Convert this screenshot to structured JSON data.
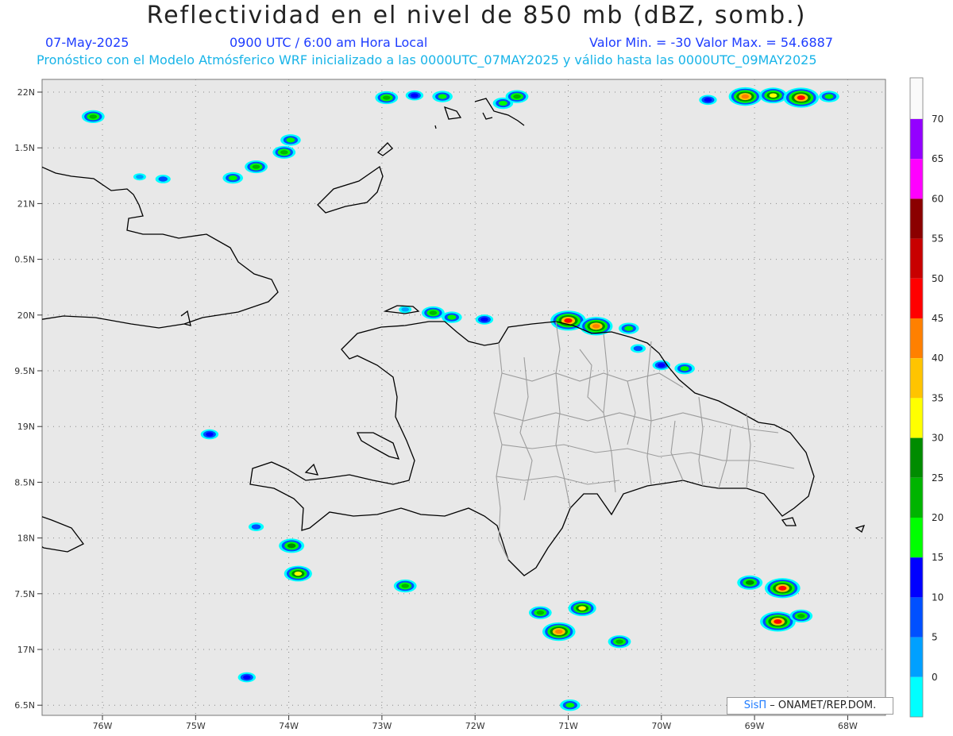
{
  "title": "Reflectividad en el nivel de 850 mb (dBZ, somb.)",
  "date": "07-May-2025",
  "time": "0900 UTC / 6:00 am Hora Local",
  "minmax": "Valor Min. = -30  Valor Max. = 54.6887",
  "model_info": "Pronóstico con el Modelo Atmósferico WRF inicializado a las 0000UTC_07MAY2025 y válido hasta las  0000UTC_09MAY2025",
  "credit_logo": "SisΠ",
  "credit_text": "– ONAMET/REP.DOM.",
  "colors": {
    "title": "#222222",
    "date": "#1e3cff",
    "info": "#18b4e8",
    "map_bg": "#e8e8e8",
    "coast": "#000000",
    "provinces": "#9c9c9c"
  },
  "map": {
    "lat_labels": [
      "22N",
      "1.5N",
      "21N",
      "0.5N",
      "20N",
      "9.5N",
      "19N",
      "8.5N",
      "18N",
      "7.5N",
      "17N",
      "6.5N"
    ],
    "lon_labels": [
      "76W",
      "75W",
      "74W",
      "73W",
      "72W",
      "71W",
      "70W",
      "69W",
      "68W"
    ]
  },
  "colorbar": {
    "labels": [
      "70",
      "65",
      "60",
      "55",
      "50",
      "45",
      "40",
      "35",
      "30",
      "25",
      "20",
      "15",
      "10",
      "5",
      "0"
    ],
    "colors": [
      "#9400ff",
      "#ff00ff",
      "#8b0000",
      "#c80000",
      "#ff0000",
      "#ff8000",
      "#ffc400",
      "#ffff00",
      "#008c00",
      "#00b400",
      "#00ff00",
      "#0000ff",
      "#0050ff",
      "#00a0ff",
      "#00ffff",
      "#e0e0e0"
    ]
  },
  "echoes": [
    {
      "lon": -76.1,
      "lat": 21.78,
      "level": 25
    },
    {
      "lon": -75.6,
      "lat": 21.24,
      "level": 5
    },
    {
      "lon": -75.35,
      "lat": 21.22,
      "level": 10
    },
    {
      "lon": -74.6,
      "lat": 21.23,
      "level": 20
    },
    {
      "lon": -74.35,
      "lat": 21.33,
      "level": 25
    },
    {
      "lon": -74.05,
      "lat": 21.46,
      "level": 25
    },
    {
      "lon": -73.98,
      "lat": 21.57,
      "level": 20
    },
    {
      "lon": -72.95,
      "lat": 21.95,
      "level": 25
    },
    {
      "lon": -72.65,
      "lat": 21.97,
      "level": 15
    },
    {
      "lon": -72.35,
      "lat": 21.96,
      "level": 20
    },
    {
      "lon": -71.7,
      "lat": 21.9,
      "level": 20
    },
    {
      "lon": -71.55,
      "lat": 21.96,
      "level": 25
    },
    {
      "lon": -69.5,
      "lat": 21.93,
      "level": 15
    },
    {
      "lon": -69.1,
      "lat": 21.96,
      "level": 45
    },
    {
      "lon": -68.8,
      "lat": 21.97,
      "level": 35
    },
    {
      "lon": -68.5,
      "lat": 21.95,
      "level": 50
    },
    {
      "lon": -68.2,
      "lat": 21.96,
      "level": 20
    },
    {
      "lon": -72.75,
      "lat": 20.05,
      "level": 5
    },
    {
      "lon": -72.45,
      "lat": 20.02,
      "level": 25
    },
    {
      "lon": -72.25,
      "lat": 19.98,
      "level": 20
    },
    {
      "lon": -71.9,
      "lat": 19.96,
      "level": 15
    },
    {
      "lon": -71.0,
      "lat": 19.95,
      "level": 50
    },
    {
      "lon": -70.7,
      "lat": 19.9,
      "level": 45
    },
    {
      "lon": -70.35,
      "lat": 19.88,
      "level": 20
    },
    {
      "lon": -70.25,
      "lat": 19.7,
      "level": 10
    },
    {
      "lon": -70.0,
      "lat": 19.55,
      "level": 15
    },
    {
      "lon": -69.75,
      "lat": 19.52,
      "level": 20
    },
    {
      "lon": -74.85,
      "lat": 18.93,
      "level": 15
    },
    {
      "lon": -74.35,
      "lat": 18.1,
      "level": 10
    },
    {
      "lon": -73.97,
      "lat": 17.93,
      "level": 30
    },
    {
      "lon": -73.9,
      "lat": 17.68,
      "level": 35
    },
    {
      "lon": -72.75,
      "lat": 17.57,
      "level": 25
    },
    {
      "lon": -71.3,
      "lat": 17.33,
      "level": 25
    },
    {
      "lon": -71.1,
      "lat": 17.16,
      "level": 45
    },
    {
      "lon": -70.85,
      "lat": 17.37,
      "level": 35
    },
    {
      "lon": -70.45,
      "lat": 17.07,
      "level": 25
    },
    {
      "lon": -69.05,
      "lat": 17.6,
      "level": 30
    },
    {
      "lon": -68.7,
      "lat": 17.55,
      "level": 50
    },
    {
      "lon": -68.75,
      "lat": 17.25,
      "level": 50
    },
    {
      "lon": -68.5,
      "lat": 17.3,
      "level": 25
    },
    {
      "lon": -70.98,
      "lat": 16.5,
      "level": 20
    },
    {
      "lon": -74.45,
      "lat": 16.75,
      "level": 15
    }
  ]
}
